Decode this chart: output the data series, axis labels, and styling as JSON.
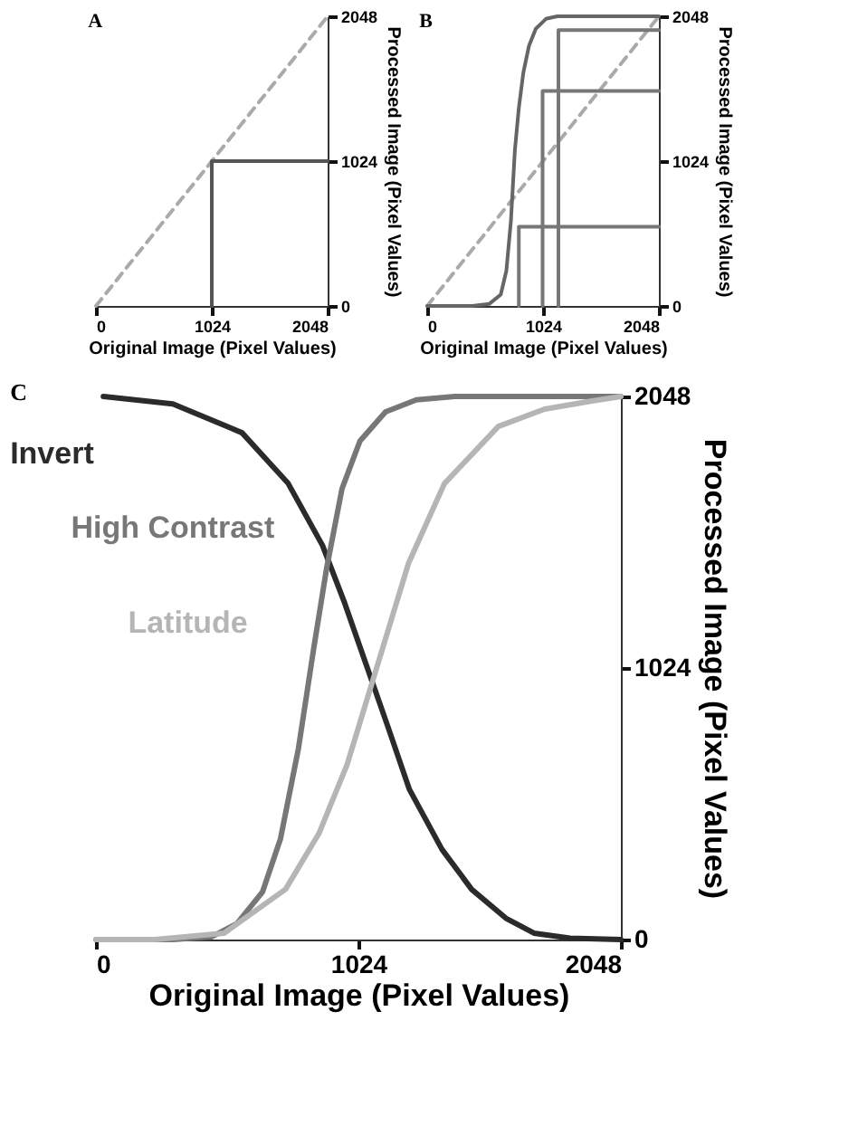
{
  "chart_data": [
    {
      "type": "line",
      "title": "A",
      "xlabel": "Original Image (Pixel Values)",
      "ylabel": "Processed Image (Pixel Values)",
      "xlim": [
        0,
        2048
      ],
      "ylim": [
        0,
        2048
      ],
      "xticks": [
        0,
        1024,
        2048
      ],
      "yticks": [
        0,
        1024,
        2048
      ],
      "series": [
        {
          "color": "#aaaaaa",
          "line_style": "dashed",
          "x": [
            0,
            2048
          ],
          "values": [
            0,
            2048
          ]
        },
        {
          "color": "#555555",
          "line_style": "solid",
          "x": [
            1024,
            1024,
            2048
          ],
          "values": [
            0,
            1024,
            1024
          ]
        }
      ]
    },
    {
      "type": "line",
      "title": "B",
      "xlabel": "Original Image (Pixel Values)",
      "ylabel": "Processed Image (Pixel Values)",
      "xlim": [
        0,
        2048
      ],
      "ylim": [
        0,
        2048
      ],
      "xticks": [
        0,
        1024,
        2048
      ],
      "yticks": [
        0,
        1024,
        2048
      ],
      "series": [
        {
          "color": "#aaaaaa",
          "line_style": "dashed",
          "x": [
            0,
            2048
          ],
          "values": [
            0,
            2048
          ]
        },
        {
          "color": "#777777",
          "line_style": "solid",
          "x": [
            810,
            810,
            2048
          ],
          "values": [
            0,
            560,
            560
          ]
        },
        {
          "color": "#777777",
          "line_style": "solid",
          "x": [
            1020,
            1020,
            2048
          ],
          "values": [
            0,
            1520,
            1520
          ]
        },
        {
          "color": "#777777",
          "line_style": "solid",
          "x": [
            1160,
            1160,
            2048
          ],
          "values": [
            0,
            1950,
            1950
          ]
        },
        {
          "color": "#666666",
          "line_style": "solid",
          "x": [
            0,
            400,
            550,
            650,
            700,
            740,
            775,
            810,
            850,
            900,
            960,
            1050,
            1150,
            2048
          ],
          "values": [
            0,
            0,
            15,
            80,
            250,
            600,
            1100,
            1400,
            1650,
            1840,
            1960,
            2030,
            2048,
            2048
          ]
        }
      ]
    },
    {
      "type": "line",
      "title": "C",
      "xlabel": "Original Image (Pixel Values)",
      "ylabel": "Processed Image (Pixel Values)",
      "xlim": [
        0,
        2048
      ],
      "ylim": [
        0,
        2048
      ],
      "xticks": [
        0,
        1024,
        2048
      ],
      "yticks": [
        0,
        1024,
        2048
      ],
      "series": [
        {
          "name": "Invert",
          "color": "#2b2b2b",
          "line_style": "solid",
          "x": [
            29,
            300,
            570,
            750,
            884,
            970,
            1054,
            1140,
            1223,
            1350,
            1466,
            1600,
            1709,
            1850,
            2048
          ],
          "values": [
            2048,
            2020,
            1911,
            1720,
            1486,
            1270,
            1038,
            800,
            566,
            340,
            189,
            80,
            24,
            5,
            0
          ]
        },
        {
          "name": "High Contrast",
          "color": "#777777",
          "line_style": "solid",
          "x": [
            0,
            300,
            450,
            550,
            650,
            720,
            790,
            850,
            900,
            960,
            1030,
            1130,
            1250,
            1400,
            2048
          ],
          "values": [
            0,
            0,
            10,
            60,
            180,
            380,
            720,
            1100,
            1400,
            1700,
            1880,
            1990,
            2035,
            2048,
            2048
          ]
        },
        {
          "name": "Latitude",
          "color": "#b5b5b5",
          "line_style": "solid",
          "x": [
            0,
            230,
            500,
            740,
            870,
            980,
            1100,
            1220,
            1360,
            1570,
            1750,
            1930,
            2048
          ],
          "values": [
            0,
            0,
            24,
            190,
            400,
            660,
            1040,
            1420,
            1720,
            1935,
            2000,
            2030,
            2048
          ]
        }
      ]
    }
  ]
}
